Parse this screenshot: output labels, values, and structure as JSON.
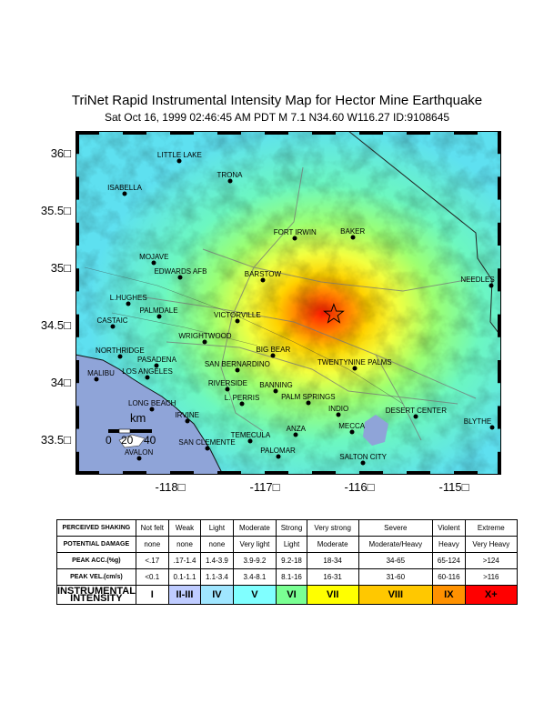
{
  "title": "TriNet Rapid Instrumental Intensity Map for Hector Mine Earthquake",
  "subtitle": "Sat Oct 16, 1999 02:46:45 AM PDT   M 7.1   N34.60 W116.27   ID:9108645",
  "map": {
    "lon_range": [
      -119.0,
      -114.5
    ],
    "lat_range": [
      33.2,
      36.2
    ],
    "y_ticks": [
      "36",
      "35.5",
      "35",
      "34.5",
      "34",
      "33.5"
    ],
    "x_ticks": [
      "-118",
      "-117",
      "-116",
      "-115"
    ],
    "degree_symbol": "□",
    "epicenter": {
      "lon": -116.27,
      "lat": 34.6
    },
    "scale_bar": {
      "unit": "km",
      "labels": [
        "0",
        "20",
        "40"
      ]
    },
    "cities": [
      {
        "name": "LITTLE LAKE",
        "lon": -117.9,
        "lat": 35.94
      },
      {
        "name": "TRONA",
        "lon": -117.37,
        "lat": 35.76
      },
      {
        "name": "ISABELLA",
        "lon": -118.48,
        "lat": 35.65
      },
      {
        "name": "BAKER",
        "lon": -116.07,
        "lat": 35.27
      },
      {
        "name": "FORT IRWIN",
        "lon": -116.68,
        "lat": 35.26
      },
      {
        "name": "MOJAVE",
        "lon": -118.17,
        "lat": 35.05
      },
      {
        "name": "EDWARDS AFB",
        "lon": -117.89,
        "lat": 34.92
      },
      {
        "name": "BARSTOW",
        "lon": -117.02,
        "lat": 34.9
      },
      {
        "name": "NEEDLES",
        "lon": -114.61,
        "lat": 34.85
      },
      {
        "name": "L.HUGHES",
        "lon": -118.44,
        "lat": 34.69
      },
      {
        "name": "PALMDALE",
        "lon": -118.12,
        "lat": 34.58
      },
      {
        "name": "CASTAIC",
        "lon": -118.61,
        "lat": 34.49
      },
      {
        "name": "VICTORVILLE",
        "lon": -117.29,
        "lat": 34.54
      },
      {
        "name": "WRIGHTWOOD",
        "lon": -117.63,
        "lat": 34.36
      },
      {
        "name": "BIG BEAR",
        "lon": -116.91,
        "lat": 34.24
      },
      {
        "name": "NORTHRIDGE",
        "lon": -118.53,
        "lat": 34.23
      },
      {
        "name": "PASADENA",
        "lon": -118.14,
        "lat": 34.15
      },
      {
        "name": "TWENTYNINE PALMS",
        "lon": -116.05,
        "lat": 34.13
      },
      {
        "name": "SAN BERNARDINO",
        "lon": -117.29,
        "lat": 34.11
      },
      {
        "name": "MALIBU",
        "lon": -118.78,
        "lat": 34.03
      },
      {
        "name": "LOS ANGELES",
        "lon": -118.24,
        "lat": 34.05
      },
      {
        "name": "RIVERSIDE",
        "lon": -117.39,
        "lat": 33.95
      },
      {
        "name": "BANNING",
        "lon": -116.88,
        "lat": 33.93
      },
      {
        "name": "PALM SPRINGS",
        "lon": -116.54,
        "lat": 33.83
      },
      {
        "name": "L. PERRIS",
        "lon": -117.24,
        "lat": 33.82
      },
      {
        "name": "LONG BEACH",
        "lon": -118.19,
        "lat": 33.77
      },
      {
        "name": "INDIO",
        "lon": -116.22,
        "lat": 33.72
      },
      {
        "name": "DESERT CENTER",
        "lon": -115.4,
        "lat": 33.71
      },
      {
        "name": "IRVINE",
        "lon": -117.82,
        "lat": 33.67
      },
      {
        "name": "BLYTHE",
        "lon": -114.6,
        "lat": 33.61
      },
      {
        "name": "MECCA",
        "lon": -116.08,
        "lat": 33.57
      },
      {
        "name": "TEMECULA",
        "lon": -117.15,
        "lat": 33.49
      },
      {
        "name": "ANZA",
        "lon": -116.67,
        "lat": 33.55
      },
      {
        "name": "SAN CLEMENTE",
        "lon": -117.61,
        "lat": 33.43
      },
      {
        "name": "PALOMAR",
        "lon": -116.86,
        "lat": 33.36
      },
      {
        "name": "AVALON",
        "lon": -118.33,
        "lat": 33.34
      },
      {
        "name": "SALTON CITY",
        "lon": -115.96,
        "lat": 33.3
      }
    ]
  },
  "legend": {
    "rows": [
      {
        "header": "PERCEIVED SHAKING",
        "cells": [
          "Not felt",
          "Weak",
          "Light",
          "Moderate",
          "Strong",
          "Very strong",
          "Severe",
          "Violent",
          "Extreme"
        ]
      },
      {
        "header": "POTENTIAL DAMAGE",
        "cells": [
          "none",
          "none",
          "none",
          "Very light",
          "Light",
          "Moderate",
          "Moderate/Heavy",
          "Heavy",
          "Very Heavy"
        ]
      },
      {
        "header": "PEAK ACC.(%g)",
        "cells": [
          "<.17",
          ".17-1.4",
          "1.4-3.9",
          "3.9-9.2",
          "9.2-18",
          "18-34",
          "34-65",
          "65-124",
          ">124"
        ]
      },
      {
        "header": "PEAK VEL.(cm/s)",
        "cells": [
          "<0.1",
          "0.1-1.1",
          "1.1-3.4",
          "3.4-8.1",
          "8.1-16",
          "16-31",
          "31-60",
          "60-116",
          ">116"
        ]
      }
    ],
    "intensity_header": "INSTRUMENTAL INTENSITY",
    "intensity": [
      "I",
      "II-III",
      "IV",
      "V",
      "VI",
      "VII",
      "VIII",
      "IX",
      "X+"
    ],
    "intensity_colors": [
      "#ffffff",
      "#bfccff",
      "#a0e6ff",
      "#80ffff",
      "#7aff93",
      "#ffff00",
      "#ffc800",
      "#ff9100",
      "#ff0000"
    ]
  }
}
